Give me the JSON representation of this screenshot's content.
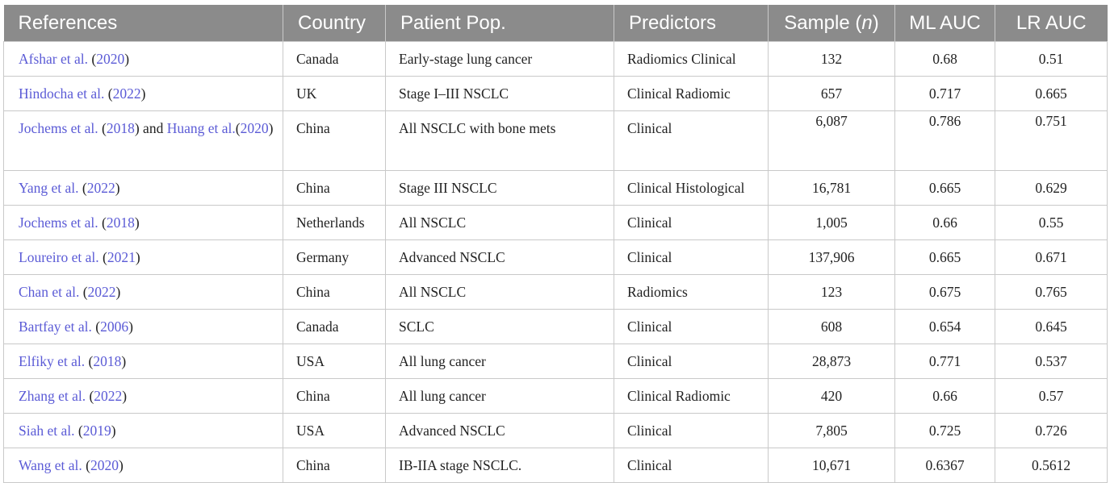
{
  "headers": {
    "references": "References",
    "country": "Country",
    "patient_pop": "Patient Pop.",
    "predictors": "Predictors",
    "sample_prefix": "Sample (",
    "sample_n": "n",
    "sample_suffix": ")",
    "ml_auc": "ML AUC",
    "lr_auc": "LR AUC"
  },
  "colors": {
    "header_bg": "#8b8b8b",
    "link": "#5b5bd6",
    "border": "#c9c9c9"
  },
  "rows": [
    {
      "ref": {
        "a1": "Afshar et al.",
        "p1": " (",
        "y1": "2020",
        "p2": ")"
      },
      "country": "Canada",
      "pop": "Early-stage lung cancer",
      "predictors": "Radiomics Clinical",
      "sample": "132",
      "ml": "0.68",
      "lr": "0.51"
    },
    {
      "ref": {
        "a1": "Hindocha et al.",
        "p1": " (",
        "y1": "2022",
        "p2": ")"
      },
      "country": "UK",
      "pop": "Stage I–III NSCLC",
      "predictors": "Clinical Radiomic",
      "sample": "657",
      "ml": "0.717",
      "lr": "0.665"
    },
    {
      "ref": {
        "a1": "Jochems et al.",
        "p1": " (",
        "y1": "2018",
        "p2": ") and ",
        "a2": "Huang et al.",
        "p3": "(",
        "y2": "2020",
        "p4": ")"
      },
      "country": "China",
      "pop": "All NSCLC with bone mets",
      "predictors": "Clinical",
      "sample": "6,087",
      "ml": "0.786",
      "lr": "0.751"
    },
    {
      "ref": {
        "a1": "Yang et al.",
        "p1": " (",
        "y1": "2022",
        "p2": ")"
      },
      "country": "China",
      "pop": "Stage III NSCLC",
      "predictors": "Clinical Histological",
      "sample": "16,781",
      "ml": "0.665",
      "lr": "0.629"
    },
    {
      "ref": {
        "a1": "Jochems et al.",
        "p1": " (",
        "y1": "2018",
        "p2": ")"
      },
      "country": "Netherlands",
      "pop": "All NSCLC",
      "predictors": "Clinical",
      "sample": "1,005",
      "ml": "0.66",
      "lr": "0.55"
    },
    {
      "ref": {
        "a1": "Loureiro et al.",
        "p1": " (",
        "y1": "2021",
        "p2": ")"
      },
      "country": "Germany",
      "pop": "Advanced NSCLC",
      "predictors": "Clinical",
      "sample": "137,906",
      "ml": "0.665",
      "lr": "0.671"
    },
    {
      "ref": {
        "a1": "Chan et al.",
        "p1": " (",
        "y1": "2022",
        "p2": ")"
      },
      "country": "China",
      "pop": "All NSCLC",
      "predictors": "Radiomics",
      "sample": "123",
      "ml": "0.675",
      "lr": "0.765"
    },
    {
      "ref": {
        "a1": "Bartfay et al.",
        "p1": " (",
        "y1": "2006",
        "p2": ")"
      },
      "country": "Canada",
      "pop": "SCLC",
      "predictors": "Clinical",
      "sample": "608",
      "ml": "0.654",
      "lr": "0.645"
    },
    {
      "ref": {
        "a1": "Elfiky et al.",
        "p1": " (",
        "y1": "2018",
        "p2": ")"
      },
      "country": "USA",
      "pop": "All lung cancer",
      "predictors": "Clinical",
      "sample": "28,873",
      "ml": "0.771",
      "lr": "0.537"
    },
    {
      "ref": {
        "a1": "Zhang et al.",
        "p1": " (",
        "y1": "2022",
        "p2": ")"
      },
      "country": "China",
      "pop": "All lung cancer",
      "predictors": "Clinical Radiomic",
      "sample": "420",
      "ml": "0.66",
      "lr": "0.57"
    },
    {
      "ref": {
        "a1": "Siah et al.",
        "p1": " (",
        "y1": "2019",
        "p2": ")"
      },
      "country": "USA",
      "pop": "Advanced NSCLC",
      "predictors": "Clinical",
      "sample": "7,805",
      "ml": "0.725",
      "lr": "0.726"
    },
    {
      "ref": {
        "a1": "Wang et al.",
        "p1": " (",
        "y1": "2020",
        "p2": ")"
      },
      "country": "China",
      "pop": "IB-IIA stage NSCLC.",
      "predictors": "Clinical",
      "sample": "10,671",
      "ml": "0.6367",
      "lr": "0.5612"
    }
  ]
}
